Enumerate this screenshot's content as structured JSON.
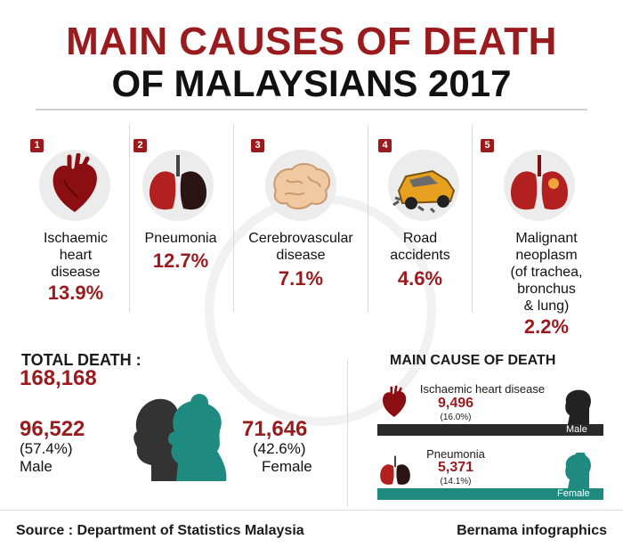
{
  "title": {
    "line1": "MAIN CAUSES OF DEATH",
    "line2": "OF MALAYSIANS 2017"
  },
  "causes": [
    {
      "rank": "1",
      "icon": "heart-icon",
      "name_lines": [
        "Ischaemic",
        "heart",
        "disease"
      ],
      "percent": "13.9%"
    },
    {
      "rank": "2",
      "icon": "lungs-icon",
      "name_lines": [
        "Pneumonia"
      ],
      "percent": "12.7%"
    },
    {
      "rank": "3",
      "icon": "brain-icon",
      "name_lines": [
        "Cerebrovascular",
        "disease"
      ],
      "percent": "7.1%"
    },
    {
      "rank": "4",
      "icon": "car-crash-icon",
      "name_lines": [
        "Road",
        "accidents"
      ],
      "percent": "4.6%"
    },
    {
      "rank": "5",
      "icon": "lungs-tumor-icon",
      "name_lines": [
        "Malignant",
        "neoplasm",
        "(of trachea,",
        "bronchus",
        "& lung)"
      ],
      "percent": "2.2%"
    }
  ],
  "total": {
    "label": "TOTAL DEATH :",
    "value": "168,168"
  },
  "male": {
    "count": "96,522",
    "percent": "(57.4%)",
    "label": "Male"
  },
  "female": {
    "count": "71,646",
    "percent": "(42.6%)",
    "label": "Female"
  },
  "main_cause": {
    "title": "MAIN CAUSE OF  DEATH",
    "male": {
      "cause": "Ischaemic heart disease",
      "count": "9,496",
      "percent": "(16.0%)",
      "label": "Male"
    },
    "female": {
      "cause": "Pneumonia",
      "count": "5,371",
      "percent": "(14.1%)",
      "label": "Female"
    }
  },
  "footer": {
    "source": "Source : Department of Statistics Malaysia",
    "credit": "Bernama infographics"
  },
  "colors": {
    "accent": "#9a1b1e",
    "female": "#1f8a80",
    "male": "#2a2a2a"
  }
}
